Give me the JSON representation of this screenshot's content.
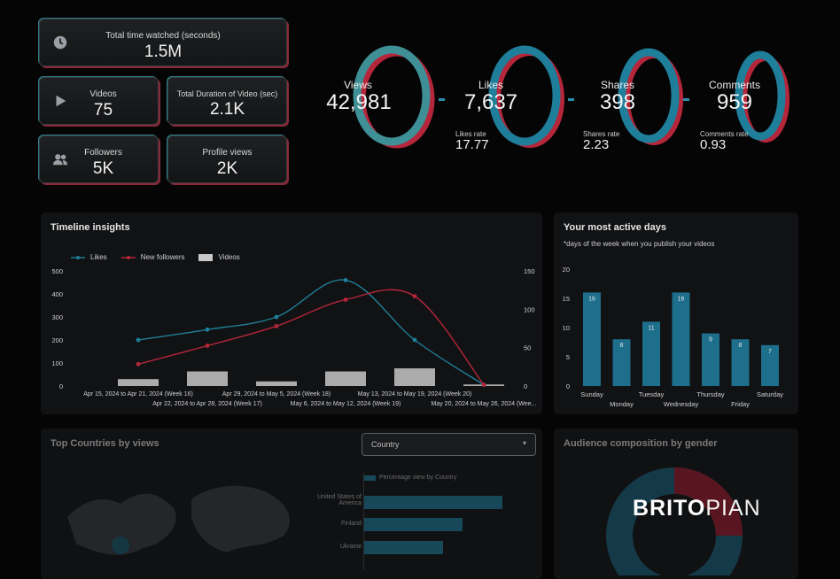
{
  "kpis": {
    "total_time": {
      "label": "Total time watched (seconds)",
      "value": "1.5M",
      "icon": "clock-icon"
    },
    "videos": {
      "label": "Videos",
      "value": "75",
      "icon": "play-icon"
    },
    "duration": {
      "label": "Total Duration of Video (sec)",
      "value": "2.1K"
    },
    "followers": {
      "label": "Followers",
      "value": "5K",
      "icon": "people-icon"
    },
    "profile_views": {
      "label": "Profile views",
      "value": "2K"
    }
  },
  "metrics": {
    "views": {
      "label": "Views",
      "value": "42,981"
    },
    "likes": {
      "label": "Likes",
      "value": "7,637",
      "rate_label": "Likes rate",
      "rate": "17.77"
    },
    "shares": {
      "label": "Shares",
      "value": "398",
      "rate_label": "Shares rate",
      "rate": "2.23"
    },
    "comments": {
      "label": "Comments",
      "value": "959",
      "rate_label": "Comments rate",
      "rate": "0.93"
    }
  },
  "timeline": {
    "title": "Timeline insights",
    "legend": {
      "likes": "Likes",
      "followers": "New followers",
      "videos": "Videos"
    },
    "y_left_ticks": [
      "500",
      "400",
      "300",
      "200",
      "100",
      "0"
    ],
    "y_right_ticks": [
      "150",
      "100",
      "50",
      "0"
    ],
    "x_labels_top": [
      "Apr 15, 2024 to Apr 21, 2024 (Week 16)",
      "Apr 29, 2024 to May 5, 2024 (Week 18)",
      "May 13, 2024 to May 19, 2024 (Week 20)"
    ],
    "x_labels_bottom": [
      "Apr 22, 2024 to Apr 28, 2024 (Week 17)",
      "May 6, 2024 to May 12, 2024 (Week 19)",
      "May 20, 2024 to May 26, 2024 (Wee..."
    ]
  },
  "active_days": {
    "title": "Your most active days",
    "subtitle": "*days of the week when you publish your videos",
    "y_ticks": [
      "20",
      "15",
      "10",
      "5",
      "0"
    ]
  },
  "countries": {
    "title": "Top Countries by views",
    "dropdown": "Country",
    "legend": "Percentage view by Country",
    "rows": [
      "United States of America",
      "Finland",
      "Ukraine"
    ]
  },
  "gender": {
    "title": "Audience composition by gender"
  },
  "brand": {
    "part1": "BRITO",
    "part2": "PIAN"
  },
  "colors": {
    "teal": "#1f7e99",
    "red": "#b5263a",
    "bar": "#1d6f8c"
  },
  "chart_data": [
    {
      "type": "line",
      "title": "Timeline insights",
      "categories": [
        "Apr 15, 2024 to Apr 21, 2024 (Week 16)",
        "Apr 22, 2024 to Apr 28, 2024 (Week 17)",
        "Apr 29, 2024 to May 5, 2024 (Week 18)",
        "May 6, 2024 to May 12, 2024 (Week 19)",
        "May 13, 2024 to May 19, 2024 (Week 20)",
        "May 20, 2024 to May 26, 2024 (Wee..."
      ],
      "series": [
        {
          "name": "Likes",
          "axis": "left",
          "values": [
            200,
            245,
            300,
            460,
            200,
            5
          ]
        },
        {
          "name": "New followers",
          "axis": "left",
          "values": [
            95,
            175,
            260,
            375,
            390,
            5
          ]
        },
        {
          "name": "Videos",
          "axis": "right",
          "chart": "bar",
          "values": [
            9,
            19,
            6,
            19,
            23,
            2
          ]
        }
      ],
      "ylim_left": [
        0,
        500
      ],
      "ylim_right": [
        0,
        150
      ]
    },
    {
      "type": "bar",
      "title": "Your most active days",
      "categories": [
        "Sunday",
        "Monday",
        "Tuesday",
        "Wednesday",
        "Thursday",
        "Friday",
        "Saturday"
      ],
      "values": [
        16,
        8,
        11,
        16,
        9,
        8,
        7
      ],
      "ylim": [
        0,
        20
      ]
    }
  ]
}
